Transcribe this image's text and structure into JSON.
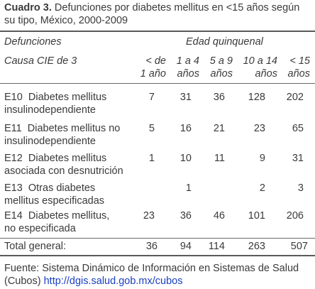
{
  "caption": {
    "label": "Cuadro 3.",
    "text": "Defunciones por diabetes mellitus en <15 años según su tipo, México, 2000-2009"
  },
  "header": {
    "defunciones": "Defunciones",
    "edad": "Edad quinquenal",
    "causa": "Causa CIE de 3",
    "columns": [
      [
        "< de",
        "1 año"
      ],
      [
        "1 a 4",
        "años"
      ],
      [
        "5 a 9",
        "años"
      ],
      [
        "10 a 14",
        "años"
      ],
      [
        "< 15",
        "años"
      ]
    ]
  },
  "rows": [
    {
      "code": "E10",
      "desc1": "Diabetes mellitus",
      "desc2": "insulinodependiente",
      "values": [
        "7",
        "31",
        "36",
        "128",
        "202"
      ]
    },
    {
      "code": "E11",
      "desc1": "Diabetes mellitus no",
      "desc2": "insulinodependiente",
      "values": [
        "5",
        "16",
        "21",
        "23",
        "65"
      ]
    },
    {
      "code": "E12",
      "desc1": "Diabetes mellitus",
      "desc2": "asociada con desnutrición",
      "values": [
        "1",
        "10",
        "11",
        "9",
        "31"
      ]
    },
    {
      "code": "E13",
      "desc1": "Otras diabetes",
      "desc2": "mellitus especificadas",
      "values": [
        "",
        "1",
        "",
        "2",
        "3"
      ]
    },
    {
      "code": "E14",
      "desc1": "Diabetes mellitus,",
      "desc2": "no especificada",
      "values": [
        "23",
        "36",
        "46",
        "101",
        "206"
      ]
    }
  ],
  "total": {
    "label": "Total general:",
    "values": [
      "36",
      "94",
      "114",
      "263",
      "507"
    ]
  },
  "footer": {
    "text": "Fuente:  Sistema Dinámico de Información en Sistemas de Salud (Cubos)",
    "link": "http://dgis.salud.gob.mx/cubos"
  }
}
